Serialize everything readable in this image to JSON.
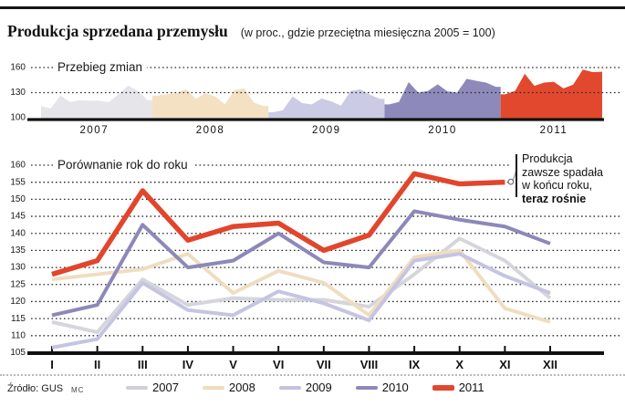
{
  "header": {
    "title": "Produkcja sprzedana przemysłu",
    "subtitle": "(w proc., gdzie przeciętna miesięczna 2005 = 100)"
  },
  "chart1": {
    "label": "Przebieg zmian"
  },
  "chart2": {
    "label": "Porównanie rok do roku",
    "annotation": {
      "line1": "Produkcja",
      "line2": "zawsze spadała",
      "line3": "w końcu roku,",
      "line4": "teraz rośnie"
    }
  },
  "footer": {
    "source": "Źródło: GUS",
    "credit": "MC"
  },
  "legend": [
    {
      "label": "2007",
      "color": "#cfd0d6",
      "thick": false
    },
    {
      "label": "2008",
      "color": "#eedcbc",
      "thick": false
    },
    {
      "label": "2009",
      "color": "#c3c2e0",
      "thick": false
    },
    {
      "label": "2010",
      "color": "#8d88ba",
      "thick": false
    },
    {
      "label": "2011",
      "color": "#e2472e",
      "thick": true
    }
  ],
  "chart_data": [
    {
      "type": "area",
      "title": "Przebieg zmian",
      "xlabel": "years 2007 - 2011, monthly values",
      "ylabel": "index, average month of 2005 = 100",
      "ylim": [
        100,
        160
      ],
      "y_ticks": [
        160,
        130,
        100
      ],
      "grid": "dotted horizontal at 130 and 160",
      "legend_position": "year labels under x-axis",
      "series": [
        {
          "name": "2007",
          "color": "#e6e6ea",
          "values": [
            114,
            111,
            126.5,
            119,
            121,
            120.5,
            120.5,
            118.5,
            128,
            138.5,
            132,
            121
          ]
        },
        {
          "name": "2008",
          "color": "#f4e0c3",
          "values": [
            126.5,
            128,
            129.5,
            134,
            122.5,
            129,
            125.5,
            116,
            133,
            135,
            118,
            114
          ]
        },
        {
          "name": "2009",
          "color": "#cccbe6",
          "values": [
            106.5,
            109,
            125.5,
            117.5,
            116,
            123,
            119.5,
            114.5,
            132,
            134,
            127.5,
            122.5
          ]
        },
        {
          "name": "2010",
          "color": "#8e89bb",
          "values": [
            116,
            119,
            142.5,
            130,
            132,
            140,
            131.5,
            130,
            146.5,
            144,
            142,
            137
          ]
        },
        {
          "name": "2011",
          "color": "#e2482e",
          "values": [
            128,
            132,
            152.5,
            138,
            142,
            143,
            135,
            139.5,
            157.5,
            154.5,
            155
          ]
        }
      ]
    },
    {
      "type": "line",
      "title": "Porównanie rok do roku",
      "categories": [
        "I",
        "II",
        "III",
        "IV",
        "V",
        "VI",
        "VII",
        "VIII",
        "IX",
        "X",
        "XI",
        "XII"
      ],
      "ylim": [
        105,
        160
      ],
      "y_ticks": [
        160,
        155,
        150,
        145,
        140,
        135,
        130,
        125,
        120,
        115,
        110,
        105
      ],
      "grid": "dotted horizontal every 5 units",
      "legend_position": "bottom row",
      "series": [
        {
          "name": "2007",
          "color": "#d5d6db",
          "values": [
            114,
            111,
            126.5,
            119,
            121,
            120.5,
            120.5,
            118.5,
            128,
            138.5,
            132,
            121
          ]
        },
        {
          "name": "2008",
          "color": "#efddc1",
          "values": [
            126.5,
            128,
            129.5,
            134,
            122.5,
            129,
            125.5,
            116,
            133,
            135,
            118,
            114
          ]
        },
        {
          "name": "2009",
          "color": "#c5c4e2",
          "values": [
            106.5,
            109,
            125.5,
            117.5,
            116,
            123,
            119.5,
            114.5,
            132,
            134,
            127.5,
            122.5
          ]
        },
        {
          "name": "2010",
          "color": "#8d88ba",
          "values": [
            116,
            119,
            142.5,
            130,
            132,
            140,
            131.5,
            130,
            146.5,
            144,
            142,
            137
          ]
        },
        {
          "name": "2011",
          "color": "#e2452c",
          "values": [
            128,
            132,
            152.5,
            138,
            142,
            143,
            135,
            139.5,
            157.5,
            154.5,
            155
          ]
        }
      ]
    }
  ]
}
